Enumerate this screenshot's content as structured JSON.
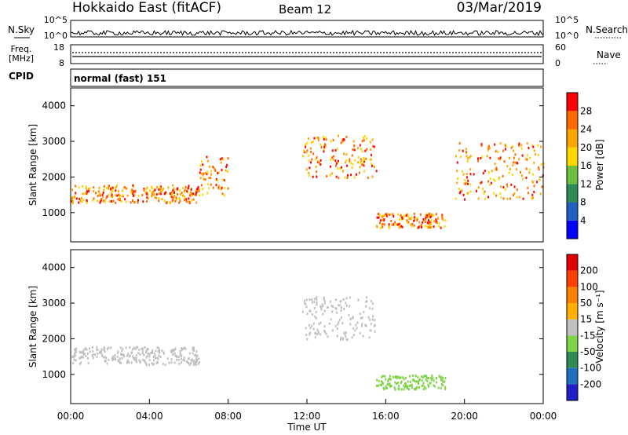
{
  "header": {
    "site": "Hokkaido East (fitACF)",
    "beam": "Beam 12",
    "date": "03/Mar/2019"
  },
  "noise_panel": {
    "left_label": "N.Sky",
    "left_ticks": [
      "10^5",
      "10^0"
    ],
    "right_ticks": [
      "10^5",
      "10^0"
    ],
    "right_label": "N.Search"
  },
  "freq_panel": {
    "left_label_line1": "Freq.",
    "left_label_line2": "[MHz]",
    "left_ticks": [
      "18",
      "8"
    ],
    "right_ticks": [
      "60",
      "0"
    ],
    "right_label": "Nave"
  },
  "cpid": {
    "label": "CPID",
    "value": "normal (fast) 151"
  },
  "colors": {
    "power": [
      "#0000ff",
      "#1f5fc0",
      "#2e8b57",
      "#6bbf3c",
      "#ffd700",
      "#ffa500",
      "#ff6a00",
      "#ff0000"
    ],
    "velocity": [
      "#2020c8",
      "#1f6fbf",
      "#2e8b57",
      "#7ed348",
      "#c0c0c0",
      "#ffb000",
      "#ff8000",
      "#ff4000",
      "#e00000"
    ]
  },
  "chart_data": [
    {
      "type": "heatmap",
      "name": "power",
      "ylabel": "Slant Range [km]",
      "y_ticks": [
        "4000",
        "3000",
        "2000",
        "1000"
      ],
      "ylim": [
        180,
        4500
      ],
      "colorbar_label": "Power [dB]",
      "colorbar_ticks": [
        "28",
        "24",
        "20",
        "16",
        "12",
        "8",
        "4"
      ],
      "features": [
        {
          "start": "00:00",
          "end": "06:30",
          "range_km": [
            1300,
            1800
          ],
          "power_db": [
            24,
            30
          ]
        },
        {
          "start": "06:30",
          "end": "08:00",
          "range_km": [
            1500,
            2600
          ],
          "power_db": [
            24,
            30
          ]
        },
        {
          "start": "11:45",
          "end": "15:30",
          "range_km": [
            2000,
            3200
          ],
          "power_db": [
            22,
            30
          ]
        },
        {
          "start": "19:30",
          "end": "24:00",
          "range_km": [
            1400,
            3000
          ],
          "power_db": [
            22,
            30
          ]
        },
        {
          "start": "15:30",
          "end": "19:00",
          "range_km": [
            600,
            1000
          ],
          "power_db": [
            22,
            30
          ]
        }
      ]
    },
    {
      "type": "heatmap",
      "name": "velocity",
      "ylabel": "Slant Range [km]",
      "y_ticks": [
        "4000",
        "3000",
        "2000",
        "1000"
      ],
      "ylim": [
        180,
        4500
      ],
      "colorbar_label": "Velocity [m s⁻¹]",
      "colorbar_ticks": [
        "200",
        "100",
        "50",
        "15",
        "-15",
        "-50",
        "-100",
        "-200"
      ],
      "xlabel": "Time UT",
      "x_ticks": [
        "00:00",
        "04:00",
        "08:00",
        "12:00",
        "16:00",
        "20:00",
        "00:00"
      ],
      "features": [
        {
          "start": "00:00",
          "end": "06:30",
          "range_km": [
            1300,
            1800
          ],
          "velocity_ms": [
            -15,
            15
          ]
        },
        {
          "start": "11:45",
          "end": "15:30",
          "range_km": [
            2000,
            3200
          ],
          "velocity_ms": [
            -15,
            15
          ]
        },
        {
          "start": "15:30",
          "end": "19:00",
          "range_km": [
            600,
            1000
          ],
          "velocity_ms": [
            15,
            50
          ]
        }
      ]
    }
  ]
}
